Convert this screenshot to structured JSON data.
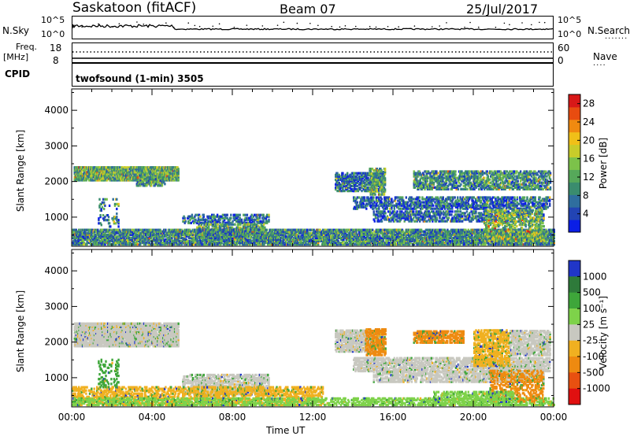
{
  "header": {
    "station": "Saskatoon (fitACF)",
    "beam": "Beam 07",
    "date": "25/Jul/2017"
  },
  "strip_labels": {
    "nsky": "N.Sky",
    "nsky_ticks": [
      "10^5",
      "10^0"
    ],
    "nsearch": "N.Search",
    "nsearch_ticks": [
      "10^5",
      "10^0"
    ],
    "freq_line1": "Freq.",
    "freq_line2": "[MHz]",
    "freq_ticks": [
      "18",
      "8"
    ],
    "nave": "Nave",
    "nave_ticks": [
      "60",
      "0"
    ],
    "cpid": "CPID",
    "cpid_text": "twofsound (1-min) 3505"
  },
  "colors": {
    "power": [
      "#0a1ee6",
      "#2244b4",
      "#2f6e9e",
      "#3a8c6e",
      "#56a85a",
      "#7cc24a",
      "#c8cc2a",
      "#f0c018",
      "#f08a10",
      "#e84c10",
      "#d81818"
    ],
    "velocity": {
      "1000": "#2036c8",
      "500": "#2e7a3a",
      "100": "#3ea63a",
      "25": "#7ed24a",
      "-25": "#c8c8c0",
      "-100": "#f0b020",
      "-500": "#ee8a10",
      "-1000": "#e85010",
      "below": "#e01010"
    }
  },
  "chart_data": [
    {
      "type": "heatmap",
      "name": "power",
      "xlabel": "Time UT",
      "ylabel": "Slant Range [km]",
      "xlim": [
        0,
        24
      ],
      "ylim": [
        180,
        4600
      ],
      "xticks": [
        "00:00",
        "04:00",
        "08:00",
        "12:00",
        "16:00",
        "20:00",
        "00:00"
      ],
      "yticks": [
        1000,
        2000,
        3000,
        4000
      ],
      "colorbar": {
        "label": "Power [dB]",
        "ticks": [
          4,
          8,
          12,
          16,
          20,
          24,
          28
        ],
        "range": [
          0,
          30
        ]
      },
      "regions": [
        {
          "t0": 0.1,
          "t1": 5.3,
          "r0": 2000,
          "r1": 2400,
          "mean": 12,
          "density": 0.85
        },
        {
          "t0": 3.2,
          "t1": 4.6,
          "r0": 1850,
          "r1": 2100,
          "mean": 10,
          "density": 0.55
        },
        {
          "t0": 1.3,
          "t1": 2.3,
          "r0": 700,
          "r1": 1500,
          "mean": 7,
          "density": 0.18
        },
        {
          "t0": 5.5,
          "t1": 9.8,
          "r0": 800,
          "r1": 1050,
          "mean": 6,
          "density": 0.45
        },
        {
          "t0": 6.2,
          "t1": 9.6,
          "r0": 400,
          "r1": 800,
          "mean": 11,
          "density": 0.5
        },
        {
          "t0": 0.0,
          "t1": 24,
          "r0": 200,
          "r1": 650,
          "mean": 9,
          "density": 0.75
        },
        {
          "t0": 13.1,
          "t1": 15.5,
          "r0": 1700,
          "r1": 2200,
          "mean": 7,
          "density": 0.6
        },
        {
          "t0": 14.0,
          "t1": 23.8,
          "r0": 1200,
          "r1": 1550,
          "mean": 6,
          "density": 0.5
        },
        {
          "t0": 15.0,
          "t1": 23.5,
          "r0": 850,
          "r1": 1150,
          "mean": 6,
          "density": 0.45
        },
        {
          "t0": 17.0,
          "t1": 23.8,
          "r0": 1750,
          "r1": 2250,
          "mean": 9,
          "density": 0.55
        },
        {
          "t0": 20.5,
          "t1": 23.5,
          "r0": 300,
          "r1": 1200,
          "mean": 13,
          "density": 0.4
        },
        {
          "t0": 14.8,
          "t1": 15.6,
          "r0": 1600,
          "r1": 2350,
          "mean": 12,
          "density": 0.55
        }
      ]
    },
    {
      "type": "heatmap",
      "name": "velocity",
      "xlabel": "Time UT",
      "ylabel": "Slant Range [km]",
      "xlim": [
        0,
        24
      ],
      "ylim": [
        180,
        4600
      ],
      "xticks": [
        "00:00",
        "04:00",
        "08:00",
        "12:00",
        "16:00",
        "20:00",
        "00:00"
      ],
      "yticks": [
        1000,
        2000,
        3000,
        4000
      ],
      "colorbar": {
        "label": "Velocity [m s⁻¹]",
        "ticks": [
          1000,
          500,
          100,
          25,
          -25,
          -100,
          -500,
          -1000
        ]
      },
      "regions": [
        {
          "t0": 0.1,
          "t1": 5.3,
          "r0": 1850,
          "r1": 2500,
          "level": "-25",
          "density": 0.9
        },
        {
          "t0": 5.5,
          "t1": 9.8,
          "r0": 500,
          "r1": 1050,
          "level": "-25",
          "density": 0.55
        },
        {
          "t0": 0.0,
          "t1": 12.5,
          "r0": 200,
          "r1": 700,
          "level": "-100",
          "density": 0.45
        },
        {
          "t0": 0.0,
          "t1": 24,
          "r0": 200,
          "r1": 400,
          "level": "25",
          "density": 0.45
        },
        {
          "t0": 1.3,
          "t1": 2.3,
          "r0": 700,
          "r1": 1500,
          "level": "100",
          "density": 0.18
        },
        {
          "t0": 13.1,
          "t1": 15.5,
          "r0": 1700,
          "r1": 2300,
          "level": "-25",
          "density": 0.7
        },
        {
          "t0": 14.0,
          "t1": 23.8,
          "r0": 1150,
          "r1": 1550,
          "level": "-25",
          "density": 0.6
        },
        {
          "t0": 15.0,
          "t1": 23.5,
          "r0": 850,
          "r1": 1150,
          "level": "-25",
          "density": 0.55
        },
        {
          "t0": 14.6,
          "t1": 15.6,
          "r0": 1600,
          "r1": 2350,
          "level": "-500",
          "density": 0.6
        },
        {
          "t0": 17.0,
          "t1": 19.5,
          "r0": 1950,
          "r1": 2300,
          "level": "-500",
          "density": 0.6
        },
        {
          "t0": 20.0,
          "t1": 21.8,
          "r0": 1300,
          "r1": 2300,
          "level": "-100",
          "density": 0.55
        },
        {
          "t0": 21.8,
          "t1": 23.8,
          "r0": 1600,
          "r1": 2300,
          "level": "-25",
          "density": 0.6
        },
        {
          "t0": 20.8,
          "t1": 23.5,
          "r0": 300,
          "r1": 1200,
          "level": "-500",
          "density": 0.35
        },
        {
          "t0": 18.0,
          "t1": 22.0,
          "r0": 200,
          "r1": 600,
          "level": "25",
          "density": 0.45
        }
      ]
    }
  ]
}
